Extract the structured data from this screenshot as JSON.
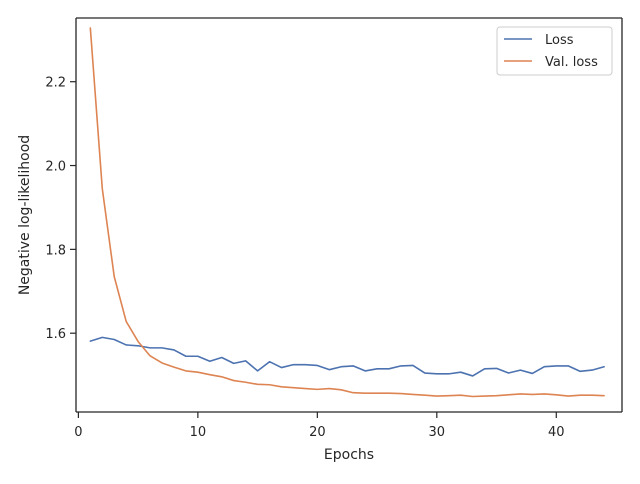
{
  "chart_data": {
    "type": "line",
    "title": "",
    "xlabel": "Epochs",
    "ylabel": "Negative log-likelihood",
    "xlim": [
      -0.2,
      45.5
    ],
    "ylim": [
      1.412,
      2.352
    ],
    "xticks": [
      0,
      10,
      20,
      30,
      40
    ],
    "yticks": [
      1.6,
      1.8,
      2.0,
      2.2
    ],
    "grid": false,
    "legend_position": "top-right",
    "x": [
      1,
      2,
      3,
      4,
      5,
      6,
      7,
      8,
      9,
      10,
      11,
      12,
      13,
      14,
      15,
      16,
      17,
      18,
      19,
      20,
      21,
      22,
      23,
      24,
      25,
      26,
      27,
      28,
      29,
      30,
      31,
      32,
      33,
      34,
      35,
      36,
      37,
      38,
      39,
      40,
      41,
      42,
      43,
      44
    ],
    "series": [
      {
        "name": "Loss",
        "color": "#4c72b0",
        "values": [
          1.581,
          1.59,
          1.585,
          1.572,
          1.57,
          1.565,
          1.565,
          1.56,
          1.545,
          1.545,
          1.533,
          1.542,
          1.528,
          1.534,
          1.51,
          1.532,
          1.518,
          1.525,
          1.525,
          1.523,
          1.513,
          1.52,
          1.522,
          1.51,
          1.515,
          1.515,
          1.522,
          1.523,
          1.505,
          1.503,
          1.503,
          1.507,
          1.498,
          1.515,
          1.516,
          1.505,
          1.512,
          1.504,
          1.52,
          1.522,
          1.522,
          1.509,
          1.512,
          1.52
        ]
      },
      {
        "name": "Val. loss",
        "color": "#dd8452",
        "values": [
          2.328,
          1.945,
          1.735,
          1.628,
          1.58,
          1.546,
          1.529,
          1.519,
          1.51,
          1.507,
          1.501,
          1.496,
          1.487,
          1.483,
          1.478,
          1.477,
          1.472,
          1.47,
          1.468,
          1.466,
          1.468,
          1.465,
          1.458,
          1.457,
          1.457,
          1.457,
          1.456,
          1.454,
          1.452,
          1.45,
          1.451,
          1.452,
          1.449,
          1.45,
          1.451,
          1.453,
          1.455,
          1.454,
          1.455,
          1.453,
          1.45,
          1.452,
          1.452,
          1.451
        ]
      }
    ]
  }
}
